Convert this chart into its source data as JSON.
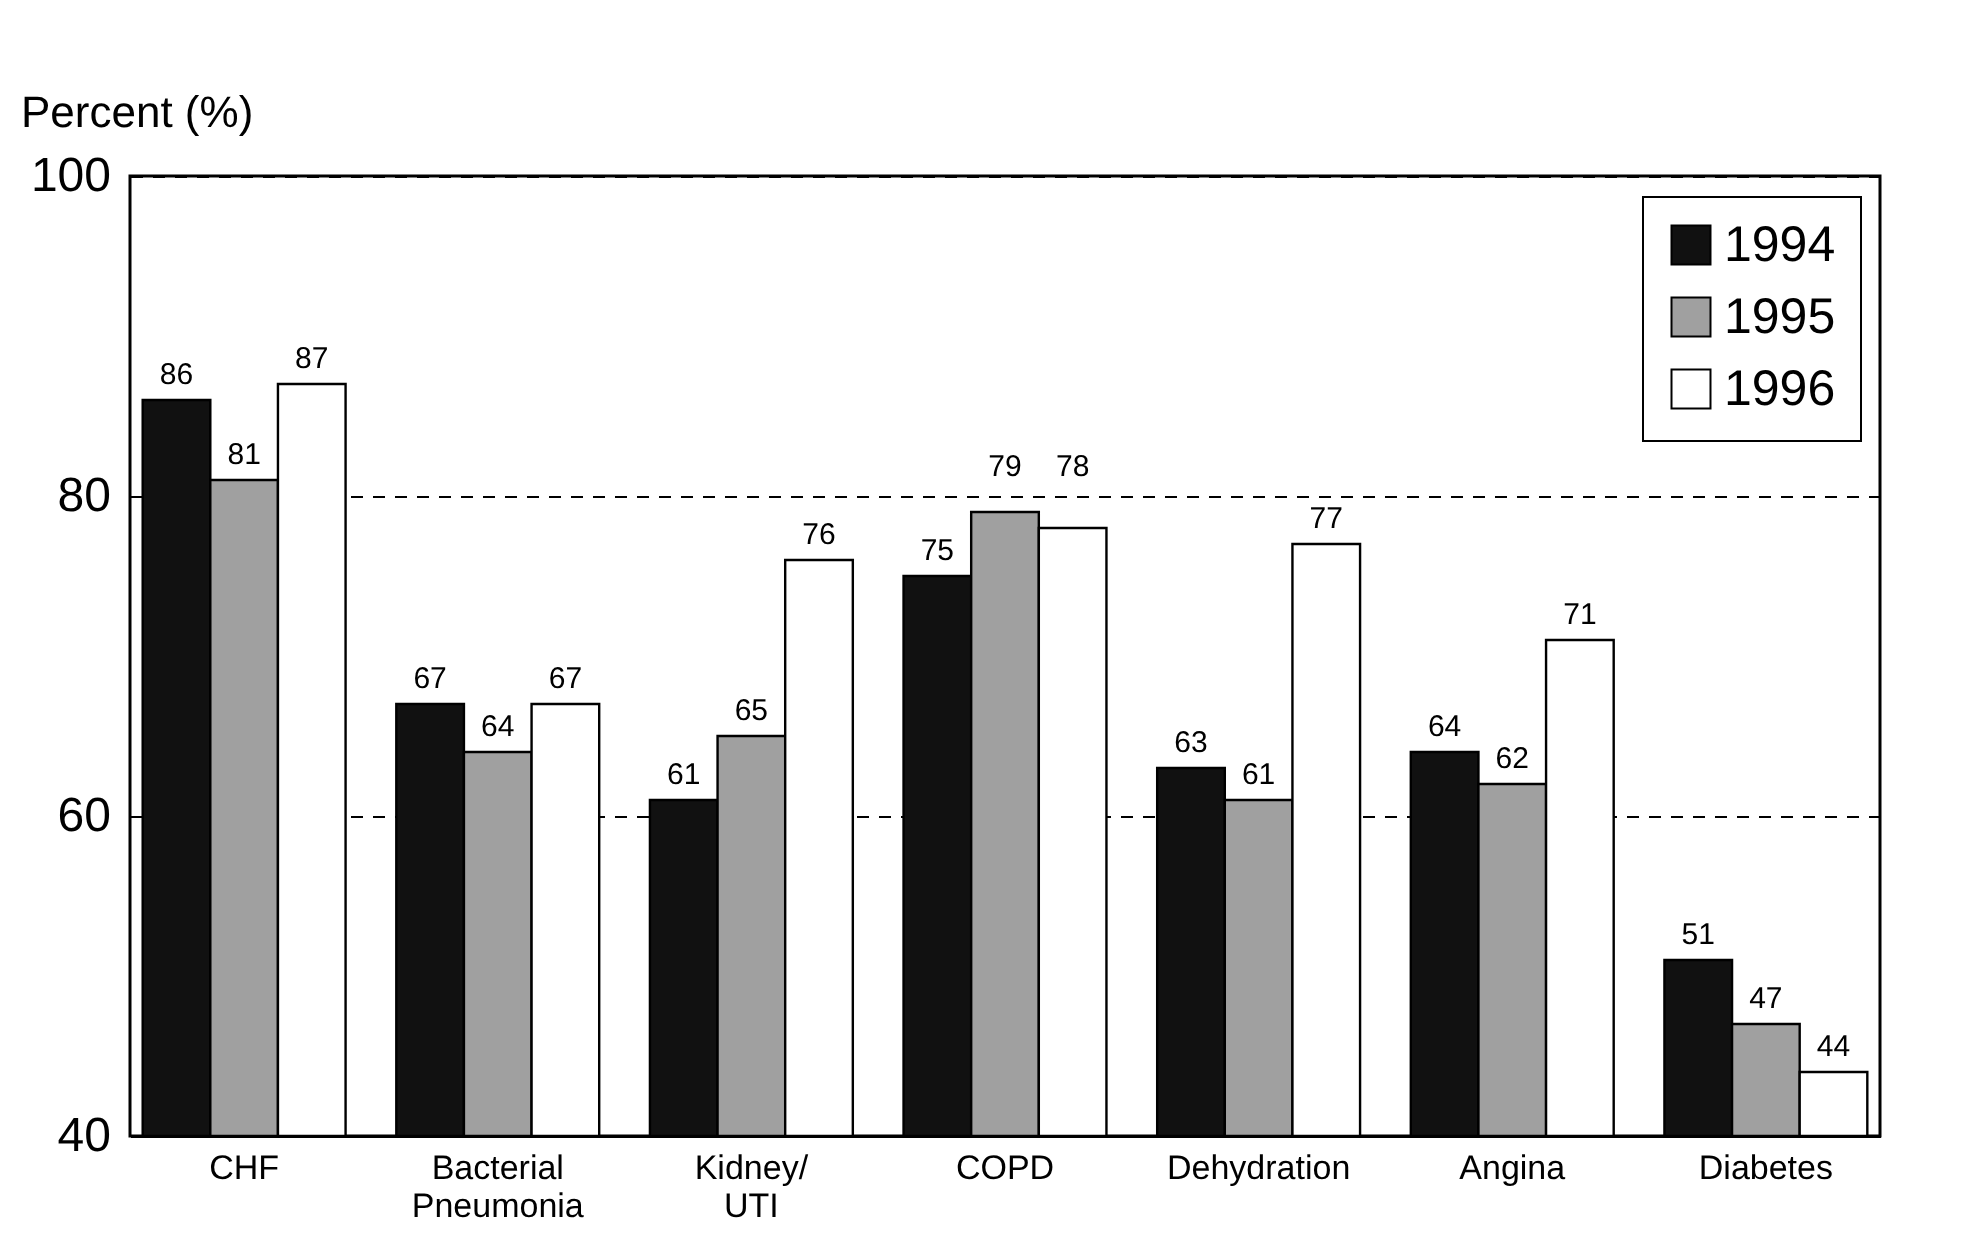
{
  "chart_data": {
    "type": "bar",
    "ylabel": "Percent (%)",
    "categories": [
      "CHF",
      "Bacterial\nPneumonia",
      "Kidney/\nUTI",
      "COPD",
      "Dehydration",
      "Angina",
      "Diabetes"
    ],
    "series": [
      {
        "name": "1994",
        "color": "#111111",
        "values": [
          86,
          67,
          61,
          75,
          63,
          64,
          51
        ]
      },
      {
        "name": "1995",
        "color": "#a0a0a0",
        "values": [
          81,
          64,
          65,
          79,
          61,
          62,
          47
        ]
      },
      {
        "name": "1996",
        "color": "#ffffff",
        "values": [
          87,
          67,
          76,
          78,
          77,
          71,
          44
        ]
      }
    ],
    "ylim": [
      40,
      100
    ],
    "yticks": [
      40,
      60,
      80,
      100
    ],
    "grid": "y",
    "legend": "top right",
    "data_labels": true
  }
}
